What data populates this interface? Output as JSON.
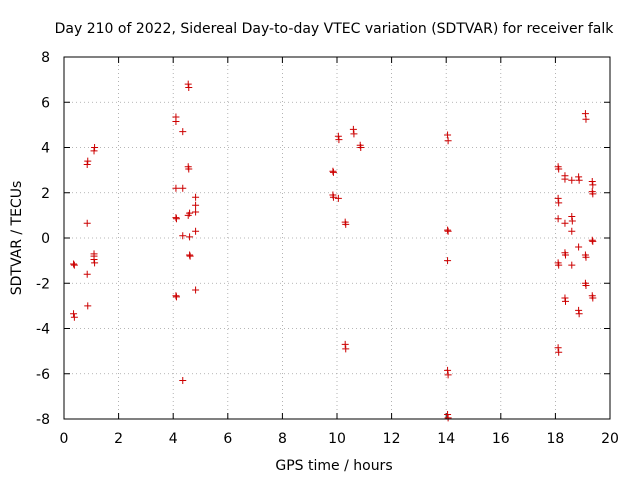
{
  "chart_data": {
    "type": "scatter",
    "title": "Day 210 of 2022, Sidereal Day-to-day VTEC variation (SDTVAR) for receiver falk",
    "xlabel": "GPS time / hours",
    "ylabel": "SDTVAR / TECUs",
    "xlim": [
      0,
      20
    ],
    "ylim": [
      -8,
      8
    ],
    "xticks": [
      0,
      2,
      4,
      6,
      8,
      10,
      12,
      14,
      16,
      18,
      20
    ],
    "yticks": [
      -8,
      -6,
      -4,
      -2,
      0,
      2,
      4,
      6,
      8
    ],
    "grid": true,
    "marker": "plus",
    "color": "#cc0000",
    "series": [
      {
        "name": "SDTVAR",
        "points": [
          [
            0.35,
            -1.15
          ],
          [
            0.38,
            -1.2
          ],
          [
            0.35,
            -3.35
          ],
          [
            0.38,
            -3.5
          ],
          [
            0.85,
            3.25
          ],
          [
            0.87,
            3.4
          ],
          [
            0.85,
            0.65
          ],
          [
            0.85,
            -1.6
          ],
          [
            0.87,
            -3.0
          ],
          [
            1.1,
            3.85
          ],
          [
            1.12,
            4.0
          ],
          [
            1.1,
            -0.7
          ],
          [
            1.1,
            -0.8
          ],
          [
            1.1,
            -0.95
          ],
          [
            1.12,
            -1.1
          ],
          [
            4.1,
            5.15
          ],
          [
            4.1,
            5.35
          ],
          [
            4.1,
            2.2
          ],
          [
            4.12,
            0.85
          ],
          [
            4.1,
            0.9
          ],
          [
            4.1,
            -2.55
          ],
          [
            4.12,
            -2.6
          ],
          [
            4.35,
            4.7
          ],
          [
            4.35,
            2.2
          ],
          [
            4.35,
            0.1
          ],
          [
            4.35,
            -6.3
          ],
          [
            4.55,
            6.8
          ],
          [
            4.57,
            6.65
          ],
          [
            4.55,
            3.15
          ],
          [
            4.57,
            3.05
          ],
          [
            4.55,
            1.0
          ],
          [
            4.6,
            1.1
          ],
          [
            4.6,
            0.05
          ],
          [
            4.6,
            -0.75
          ],
          [
            4.62,
            -0.8
          ],
          [
            4.82,
            1.8
          ],
          [
            4.82,
            1.45
          ],
          [
            4.82,
            1.15
          ],
          [
            4.82,
            0.3
          ],
          [
            4.82,
            -2.3
          ],
          [
            9.85,
            2.95
          ],
          [
            9.87,
            2.9
          ],
          [
            9.85,
            1.9
          ],
          [
            9.87,
            1.8
          ],
          [
            10.05,
            4.5
          ],
          [
            10.07,
            4.35
          ],
          [
            10.05,
            1.75
          ],
          [
            10.3,
            0.7
          ],
          [
            10.32,
            0.6
          ],
          [
            10.3,
            -4.7
          ],
          [
            10.32,
            -4.9
          ],
          [
            10.6,
            4.8
          ],
          [
            10.62,
            4.6
          ],
          [
            10.85,
            4.1
          ],
          [
            10.87,
            4.0
          ],
          [
            14.05,
            4.55
          ],
          [
            14.07,
            4.3
          ],
          [
            14.05,
            0.35
          ],
          [
            14.07,
            0.3
          ],
          [
            14.05,
            -1.0
          ],
          [
            14.05,
            -5.85
          ],
          [
            14.07,
            -6.05
          ],
          [
            14.05,
            -7.8
          ],
          [
            14.07,
            -7.95
          ],
          [
            18.1,
            3.15
          ],
          [
            18.12,
            3.05
          ],
          [
            18.1,
            1.75
          ],
          [
            18.12,
            1.55
          ],
          [
            18.1,
            0.85
          ],
          [
            18.1,
            -1.1
          ],
          [
            18.12,
            -1.2
          ],
          [
            18.1,
            -4.85
          ],
          [
            18.12,
            -5.05
          ],
          [
            18.35,
            2.75
          ],
          [
            18.35,
            2.6
          ],
          [
            18.35,
            0.65
          ],
          [
            18.35,
            -0.65
          ],
          [
            18.37,
            -0.75
          ],
          [
            18.35,
            -2.65
          ],
          [
            18.37,
            -2.8
          ],
          [
            18.6,
            2.55
          ],
          [
            18.6,
            0.95
          ],
          [
            18.62,
            0.75
          ],
          [
            18.6,
            0.3
          ],
          [
            18.6,
            -1.2
          ],
          [
            18.85,
            2.7
          ],
          [
            18.87,
            2.55
          ],
          [
            18.85,
            -0.4
          ],
          [
            18.85,
            -3.2
          ],
          [
            18.87,
            -3.35
          ],
          [
            19.1,
            5.5
          ],
          [
            19.12,
            5.25
          ],
          [
            19.1,
            -0.75
          ],
          [
            19.12,
            -0.85
          ],
          [
            19.1,
            -2.0
          ],
          [
            19.12,
            -2.1
          ],
          [
            19.35,
            2.5
          ],
          [
            19.37,
            2.35
          ],
          [
            19.35,
            2.05
          ],
          [
            19.37,
            1.95
          ],
          [
            19.35,
            -0.1
          ],
          [
            19.37,
            -0.15
          ],
          [
            19.35,
            -2.55
          ],
          [
            19.37,
            -2.65
          ]
        ]
      }
    ]
  }
}
